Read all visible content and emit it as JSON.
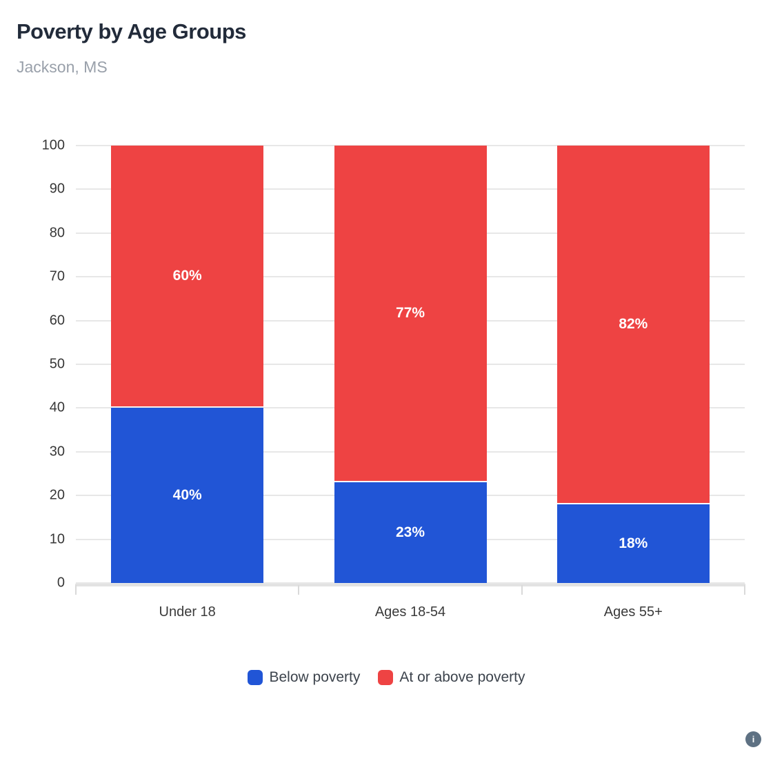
{
  "header": {
    "title": "Poverty by Age Groups",
    "subtitle": "Jackson, MS"
  },
  "chart_data": {
    "type": "bar",
    "stacked": true,
    "title": "Poverty by Age Groups",
    "subtitle": "Jackson, MS",
    "categories": [
      "Under 18",
      "Ages 18-54",
      "Ages 55+"
    ],
    "series": [
      {
        "name": "Below poverty",
        "color": "#2155d6",
        "values": [
          40,
          23,
          18
        ],
        "value_labels": [
          "40%",
          "23%",
          "18%"
        ]
      },
      {
        "name": "At or above poverty",
        "color": "#ee4343",
        "values": [
          60,
          77,
          82
        ],
        "value_labels": [
          "60%",
          "77%",
          "82%"
        ]
      }
    ],
    "xlabel": "",
    "ylabel": "",
    "ylim": [
      0,
      100
    ],
    "y_ticks": [
      0,
      10,
      20,
      30,
      40,
      50,
      60,
      70,
      80,
      90,
      100
    ],
    "grid": true,
    "legend_position": "bottom",
    "value_label_color": "#ffffff"
  },
  "footer": {
    "info_glyph": "i"
  }
}
